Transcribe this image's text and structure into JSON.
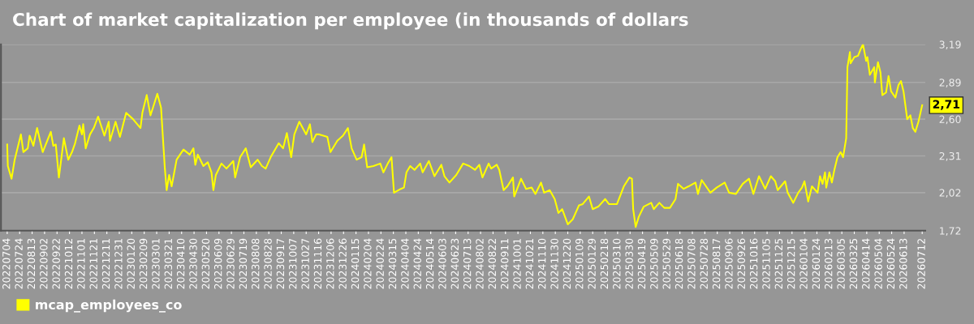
{
  "chart_data": {
    "type": "line",
    "title": "Chart of market capitalization per employee (in thousands of dollars",
    "x": [
      "2022-07-04",
      "2022-07-05",
      "2022-07-11",
      "2022-07-16",
      "2022-07-26",
      "2022-07-30",
      "2022-08-06",
      "2022-08-09",
      "2022-08-15",
      "2022-08-21",
      "2022-08-30",
      "2022-09-12",
      "2022-09-16",
      "2022-09-20",
      "2022-09-25",
      "2022-10-03",
      "2022-10-10",
      "2022-10-16",
      "2022-10-21",
      "2022-10-28",
      "2022-11-01",
      "2022-11-03",
      "2022-11-07",
      "2022-11-14",
      "2022-11-20",
      "2022-11-27",
      "2022-12-07",
      "2022-12-14",
      "2022-12-16",
      "2022-12-25",
      "2023-01-01",
      "2023-01-11",
      "2023-01-22",
      "2023-02-03",
      "2023-02-06",
      "2023-02-13",
      "2023-02-19",
      "2023-02-23",
      "2023-03-02",
      "2023-03-08",
      "2023-03-14",
      "2023-03-17",
      "2023-03-21",
      "2023-03-25",
      "2023-04-02",
      "2023-04-13",
      "2023-04-23",
      "2023-04-29",
      "2023-05-02",
      "2023-05-06",
      "2023-05-15",
      "2023-05-22",
      "2023-05-28",
      "2023-05-31",
      "2023-06-04",
      "2023-06-13",
      "2023-06-21",
      "2023-07-02",
      "2023-07-05",
      "2023-07-13",
      "2023-07-22",
      "2023-07-30",
      "2023-08-10",
      "2023-08-17",
      "2023-08-23",
      "2023-08-31",
      "2023-09-13",
      "2023-09-20",
      "2023-09-26",
      "2023-10-03",
      "2023-10-08",
      "2023-10-16",
      "2023-10-27",
      "2023-11-02",
      "2023-11-06",
      "2023-11-12",
      "2023-11-17",
      "2023-11-30",
      "2023-12-05",
      "2023-12-16",
      "2023-12-25",
      "2024-01-02",
      "2024-01-08",
      "2024-01-16",
      "2024-01-24",
      "2024-01-28",
      "2024-02-02",
      "2024-02-12",
      "2024-02-23",
      "2024-02-28",
      "2024-03-06",
      "2024-03-12",
      "2024-03-16",
      "2024-03-27",
      "2024-04-01",
      "2024-04-05",
      "2024-04-11",
      "2024-04-18",
      "2024-04-27",
      "2024-05-01",
      "2024-05-11",
      "2024-05-20",
      "2024-05-31",
      "2024-06-05",
      "2024-06-13",
      "2024-06-24",
      "2024-07-05",
      "2024-07-15",
      "2024-07-24",
      "2024-07-31",
      "2024-08-05",
      "2024-08-15",
      "2024-08-19",
      "2024-08-28",
      "2024-09-01",
      "2024-09-08",
      "2024-09-14",
      "2024-09-23",
      "2024-09-25",
      "2024-10-06",
      "2024-10-14",
      "2024-10-23",
      "2024-10-29",
      "2024-11-07",
      "2024-11-12",
      "2024-11-21",
      "2024-11-29",
      "2024-12-05",
      "2024-12-11",
      "2024-12-17",
      "2024-12-20",
      "2024-12-28",
      "2025-01-07",
      "2025-01-13",
      "2025-01-23",
      "2025-01-29",
      "2025-02-07",
      "2025-02-18",
      "2025-02-24",
      "2025-03-09",
      "2025-03-20",
      "2025-03-29",
      "2025-04-02",
      "2025-04-04",
      "2025-04-08",
      "2025-04-13",
      "2025-04-21",
      "2025-05-03",
      "2025-05-07",
      "2025-05-16",
      "2025-05-24",
      "2025-06-02",
      "2025-06-11",
      "2025-06-15",
      "2025-06-24",
      "2025-07-02",
      "2025-07-13",
      "2025-07-17",
      "2025-07-23",
      "2025-08-06",
      "2025-08-16",
      "2025-08-29",
      "2025-09-05",
      "2025-09-16",
      "2025-09-27",
      "2025-10-07",
      "2025-10-14",
      "2025-10-23",
      "2025-11-02",
      "2025-11-11",
      "2025-11-18",
      "2025-11-22",
      "2025-12-04",
      "2025-12-08",
      "2025-12-17",
      "2025-12-25",
      "2025-12-31",
      "2026-01-04",
      "2026-01-10",
      "2026-01-16",
      "2026-01-25",
      "2026-01-29",
      "2026-02-02",
      "2026-02-06",
      "2026-02-08",
      "2026-02-13",
      "2026-02-17",
      "2026-02-21",
      "2026-02-26",
      "2026-03-03",
      "2026-03-07",
      "2026-03-12",
      "2026-03-14",
      "2026-03-18",
      "2026-03-19",
      "2026-03-25",
      "2026-03-31",
      "2026-04-04",
      "2026-04-08",
      "2026-04-13",
      "2026-04-15",
      "2026-04-19",
      "2026-04-26",
      "2026-04-27",
      "2026-05-02",
      "2026-05-06",
      "2026-05-09",
      "2026-05-15",
      "2026-05-19",
      "2026-05-23",
      "2026-05-30",
      "2026-06-04",
      "2026-06-08",
      "2026-06-12",
      "2026-06-18",
      "2026-06-23",
      "2026-06-27",
      "2026-07-01",
      "2026-07-06",
      "2026-07-12"
    ],
    "series": [
      {
        "name": "mcap_employees_co",
        "color": "#ffff00",
        "values": [
          2.4,
          2.23,
          2.13,
          2.28,
          2.48,
          2.34,
          2.37,
          2.47,
          2.39,
          2.53,
          2.34,
          2.5,
          2.39,
          2.4,
          2.14,
          2.45,
          2.28,
          2.34,
          2.41,
          2.55,
          2.48,
          2.56,
          2.37,
          2.48,
          2.53,
          2.62,
          2.47,
          2.58,
          2.43,
          2.58,
          2.46,
          2.65,
          2.6,
          2.53,
          2.65,
          2.79,
          2.63,
          2.69,
          2.8,
          2.69,
          2.22,
          2.04,
          2.16,
          2.07,
          2.28,
          2.36,
          2.32,
          2.37,
          2.24,
          2.32,
          2.23,
          2.26,
          2.18,
          2.04,
          2.16,
          2.25,
          2.21,
          2.27,
          2.14,
          2.3,
          2.37,
          2.22,
          2.28,
          2.23,
          2.21,
          2.3,
          2.41,
          2.37,
          2.49,
          2.3,
          2.48,
          2.58,
          2.48,
          2.56,
          2.42,
          2.48,
          2.48,
          2.46,
          2.34,
          2.43,
          2.47,
          2.53,
          2.37,
          2.28,
          2.3,
          2.4,
          2.22,
          2.23,
          2.25,
          2.18,
          2.25,
          2.3,
          2.02,
          2.05,
          2.06,
          2.18,
          2.23,
          2.2,
          2.25,
          2.18,
          2.27,
          2.15,
          2.24,
          2.15,
          2.1,
          2.16,
          2.25,
          2.23,
          2.2,
          2.24,
          2.14,
          2.25,
          2.21,
          2.24,
          2.2,
          2.04,
          2.07,
          2.14,
          1.99,
          2.13,
          2.05,
          2.06,
          2.01,
          2.1,
          2.02,
          2.04,
          1.97,
          1.86,
          1.89,
          1.81,
          1.77,
          1.81,
          1.92,
          1.93,
          1.99,
          1.89,
          1.91,
          1.97,
          1.93,
          1.93,
          2.07,
          2.14,
          2.13,
          1.89,
          1.75,
          1.83,
          1.91,
          1.94,
          1.89,
          1.94,
          1.9,
          1.9,
          1.97,
          2.09,
          2.05,
          2.07,
          2.1,
          2.01,
          2.12,
          2.02,
          2.06,
          2.1,
          2.02,
          2.01,
          2.09,
          2.13,
          2.01,
          2.15,
          2.05,
          2.15,
          2.11,
          2.04,
          2.11,
          2.02,
          1.94,
          2.02,
          2.06,
          2.11,
          1.95,
          2.07,
          2.02,
          2.15,
          2.09,
          2.18,
          2.06,
          2.18,
          2.1,
          2.2,
          2.3,
          2.34,
          2.3,
          2.45,
          3.01,
          3.13,
          3.04,
          3.09,
          3.1,
          3.15,
          3.19,
          3.06,
          3.09,
          2.95,
          3.01,
          2.89,
          3.05,
          2.97,
          2.79,
          2.81,
          2.94,
          2.82,
          2.77,
          2.87,
          2.9,
          2.82,
          2.6,
          2.63,
          2.53,
          2.5,
          2.58,
          2.71
        ]
      }
    ],
    "xlim": [
      "2022-06-24",
      "2026-07-17"
    ],
    "xticks": [
      {
        "value": "2022-07-04",
        "label": "20220704"
      },
      {
        "value": "2022-07-24",
        "label": "20220724"
      },
      {
        "value": "2022-08-13",
        "label": "20220813"
      },
      {
        "value": "2022-09-02",
        "label": "20220902"
      },
      {
        "value": "2022-09-22",
        "label": "20220922"
      },
      {
        "value": "2022-10-12",
        "label": "20221012"
      },
      {
        "value": "2022-11-01",
        "label": "20221101"
      },
      {
        "value": "2022-11-21",
        "label": "20221121"
      },
      {
        "value": "2022-12-11",
        "label": "20221211"
      },
      {
        "value": "2022-12-31",
        "label": "20221231"
      },
      {
        "value": "2023-01-20",
        "label": "20230120"
      },
      {
        "value": "2023-02-09",
        "label": "20230209"
      },
      {
        "value": "2023-03-01",
        "label": "20230301"
      },
      {
        "value": "2023-03-21",
        "label": "20230321"
      },
      {
        "value": "2023-04-10",
        "label": "20230410"
      },
      {
        "value": "2023-04-30",
        "label": "20230430"
      },
      {
        "value": "2023-05-20",
        "label": "20230520"
      },
      {
        "value": "2023-06-09",
        "label": "20230609"
      },
      {
        "value": "2023-06-29",
        "label": "20230629"
      },
      {
        "value": "2023-07-19",
        "label": "20230719"
      },
      {
        "value": "2023-08-08",
        "label": "20230808"
      },
      {
        "value": "2023-08-28",
        "label": "20230828"
      },
      {
        "value": "2023-09-17",
        "label": "20230917"
      },
      {
        "value": "2023-10-07",
        "label": "20231007"
      },
      {
        "value": "2023-10-27",
        "label": "20231027"
      },
      {
        "value": "2023-11-16",
        "label": "20231116"
      },
      {
        "value": "2023-12-06",
        "label": "20231206"
      },
      {
        "value": "2023-12-26",
        "label": "20231226"
      },
      {
        "value": "2024-01-15",
        "label": "20240115"
      },
      {
        "value": "2024-02-04",
        "label": "20240204"
      },
      {
        "value": "2024-02-24",
        "label": "20240224"
      },
      {
        "value": "2024-03-15",
        "label": "20240315"
      },
      {
        "value": "2024-04-04",
        "label": "20240404"
      },
      {
        "value": "2024-04-24",
        "label": "20240424"
      },
      {
        "value": "2024-05-14",
        "label": "20240514"
      },
      {
        "value": "2024-06-03",
        "label": "20240603"
      },
      {
        "value": "2024-06-23",
        "label": "20240623"
      },
      {
        "value": "2024-07-13",
        "label": "20240713"
      },
      {
        "value": "2024-08-02",
        "label": "20240802"
      },
      {
        "value": "2024-08-22",
        "label": "20240822"
      },
      {
        "value": "2024-09-11",
        "label": "20240911"
      },
      {
        "value": "2024-10-01",
        "label": "20241001"
      },
      {
        "value": "2024-10-21",
        "label": "20241021"
      },
      {
        "value": "2024-11-10",
        "label": "20241110"
      },
      {
        "value": "2024-11-30",
        "label": "20241130"
      },
      {
        "value": "2024-12-20",
        "label": "20241220"
      },
      {
        "value": "2025-01-09",
        "label": "20250109"
      },
      {
        "value": "2025-01-29",
        "label": "20250129"
      },
      {
        "value": "2025-02-18",
        "label": "20250218"
      },
      {
        "value": "2025-03-10",
        "label": "20250310"
      },
      {
        "value": "2025-03-30",
        "label": "20250330"
      },
      {
        "value": "2025-04-19",
        "label": "20250419"
      },
      {
        "value": "2025-05-09",
        "label": "20250509"
      },
      {
        "value": "2025-05-29",
        "label": "20250529"
      },
      {
        "value": "2025-06-18",
        "label": "20250618"
      },
      {
        "value": "2025-07-08",
        "label": "20250708"
      },
      {
        "value": "2025-07-28",
        "label": "20250728"
      },
      {
        "value": "2025-08-17",
        "label": "20250817"
      },
      {
        "value": "2025-09-06",
        "label": "20250906"
      },
      {
        "value": "2025-09-26",
        "label": "20250926"
      },
      {
        "value": "2025-10-16",
        "label": "20251016"
      },
      {
        "value": "2025-11-05",
        "label": "20251105"
      },
      {
        "value": "2025-11-25",
        "label": "20251125"
      },
      {
        "value": "2025-12-15",
        "label": "20251215"
      },
      {
        "value": "2026-01-04",
        "label": "20260104"
      },
      {
        "value": "2026-01-24",
        "label": "20260124"
      },
      {
        "value": "2026-02-13",
        "label": "20260213"
      },
      {
        "value": "2026-03-05",
        "label": "20260305"
      },
      {
        "value": "2026-03-25",
        "label": "20260325"
      },
      {
        "value": "2026-04-14",
        "label": "20260414"
      },
      {
        "value": "2026-05-04",
        "label": "20260504"
      },
      {
        "value": "2026-05-24",
        "label": "20260524"
      },
      {
        "value": "2026-06-13",
        "label": "20260613"
      },
      {
        "value": "2026-07-12",
        "label": "20260712"
      }
    ],
    "ylim": [
      1.72,
      3.19
    ],
    "yticks": [
      {
        "value": 1.72,
        "label": "1,72"
      },
      {
        "value": 2.02,
        "label": "2,02"
      },
      {
        "value": 2.31,
        "label": "2,31"
      },
      {
        "value": 2.6,
        "label": "2,60"
      },
      {
        "value": 2.89,
        "label": "2,89"
      },
      {
        "value": 3.19,
        "label": "3,19"
      }
    ],
    "annotations": [
      {
        "text": "2,71",
        "x": "2026-07-12",
        "y": 2.71
      }
    ],
    "grid": "y",
    "legend": "bottom left",
    "marker": "none",
    "line_style": "solid"
  }
}
